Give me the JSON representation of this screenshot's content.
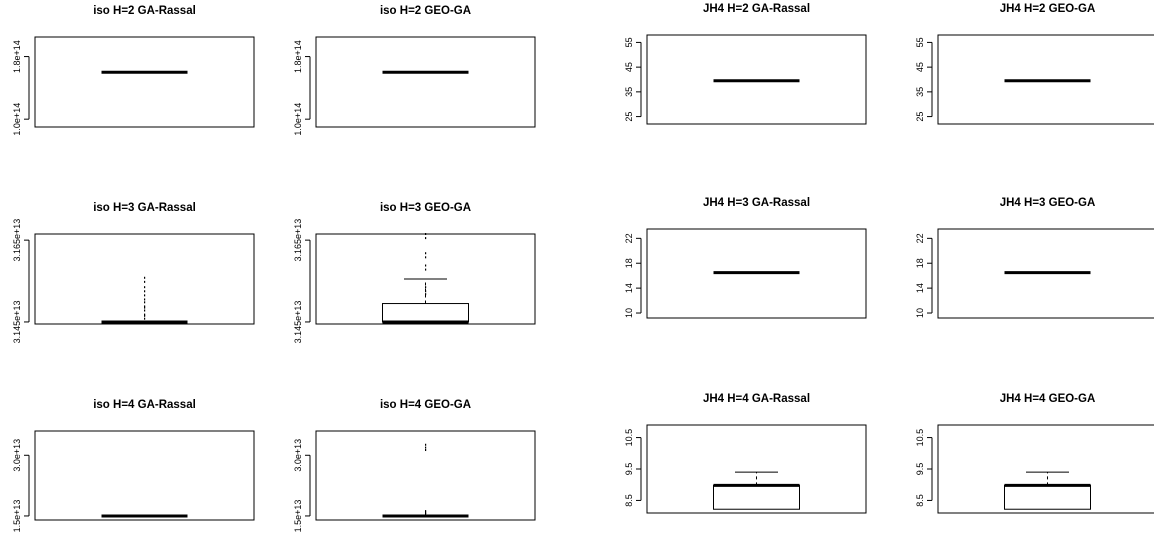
{
  "figure": {
    "title": ""
  },
  "chart_data": [
    {
      "type": "box",
      "title": "iso H=2 GA-Rassal",
      "yticks": [
        "1.0e+14",
        "1.8e+14"
      ],
      "ylim": [
        90000000000000.0,
        205000000000000.0
      ],
      "box": {
        "min": 160000000000000.0,
        "q1": 160000000000000.0,
        "median": 160000000000000.0,
        "q3": 160000000000000.0,
        "max": 160000000000000.0,
        "outliers": []
      }
    },
    {
      "type": "box",
      "title": "iso H=2 GEO-GA",
      "yticks": [
        "1.0e+14",
        "1.8e+14"
      ],
      "ylim": [
        90000000000000.0,
        205000000000000.0
      ],
      "box": {
        "min": 160000000000000.0,
        "q1": 160000000000000.0,
        "median": 160000000000000.0,
        "q3": 160000000000000.0,
        "max": 160000000000000.0,
        "outliers": []
      }
    },
    {
      "type": "box",
      "title": "JH4 H=2 GA-Rassal",
      "yticks": [
        "25",
        "35",
        "45",
        "55"
      ],
      "ylim": [
        22,
        58
      ],
      "box": {
        "min": 39.5,
        "q1": 39.5,
        "median": 39.5,
        "q3": 39.5,
        "max": 39.5,
        "outliers": []
      }
    },
    {
      "type": "box",
      "title": "JH4 H=2 GEO-GA",
      "yticks": [
        "25",
        "35",
        "45",
        "55"
      ],
      "ylim": [
        22,
        58
      ],
      "box": {
        "min": 39.5,
        "q1": 39.5,
        "median": 39.5,
        "q3": 39.5,
        "max": 39.5,
        "outliers": []
      }
    },
    {
      "type": "box",
      "title": "iso H=3 GA-Rassal",
      "yticks": [
        "3.145e+13",
        "3.165e+13"
      ],
      "ylim": [
        31445000000000.0,
        31665000000000.0
      ],
      "box": {
        "min": 31450000000000.0,
        "q1": 31450000000000.0,
        "median": 31450000000000.0,
        "q3": 31450000000000.0,
        "max": 31450000000000.0,
        "outliers": [
          31458000000000.0,
          31465000000000.0,
          31468000000000.0,
          31478000000000.0,
          31485000000000.0,
          31488000000000.0,
          31498000000000.0,
          31505000000000.0,
          31515000000000.0,
          31525000000000.0,
          31535000000000.0,
          31548000000000.0,
          31558000000000.0
        ]
      }
    },
    {
      "type": "box",
      "title": "iso H=3 GEO-GA",
      "yticks": [
        "3.145e+13",
        "3.165e+13"
      ],
      "ylim": [
        31445000000000.0,
        31665000000000.0
      ],
      "box": {
        "min": 31450000000000.0,
        "q1": 31450000000000.0,
        "median": 31450000000000.0,
        "q3": 31495000000000.0,
        "max": 31555000000000.0,
        "outliers": [
          31518000000000.0,
          31525000000000.0,
          31535000000000.0,
          31578000000000.0,
          31588000000000.0,
          31608000000000.0,
          31618000000000.0,
          31655000000000.0,
          31665000000000.0
        ]
      }
    },
    {
      "type": "box",
      "title": "JH4 H=3 GA-Rassal",
      "yticks": [
        "10",
        "14",
        "18",
        "22"
      ],
      "ylim": [
        9.2,
        23.5
      ],
      "box": {
        "min": 16.5,
        "q1": 16.5,
        "median": 16.5,
        "q3": 16.5,
        "max": 16.5,
        "outliers": []
      }
    },
    {
      "type": "box",
      "title": "JH4 H=3 GEO-GA",
      "yticks": [
        "10",
        "14",
        "18",
        "22"
      ],
      "ylim": [
        9.2,
        23.5
      ],
      "box": {
        "min": 16.5,
        "q1": 16.5,
        "median": 16.5,
        "q3": 16.5,
        "max": 16.5,
        "outliers": []
      }
    },
    {
      "type": "box",
      "title": "iso H=4 GA-Rassal",
      "yticks": [
        "1.5e+13",
        "3.0e+13"
      ],
      "ylim": [
        14000000000000.0,
        36000000000000.0
      ],
      "box": {
        "min": 15000000000000.0,
        "q1": 15000000000000.0,
        "median": 15000000000000.0,
        "q3": 15000000000000.0,
        "max": 15000000000000.0,
        "outliers": []
      }
    },
    {
      "type": "box",
      "title": "iso H=4 GEO-GA",
      "yticks": [
        "1.5e+13",
        "3.0e+13"
      ],
      "ylim": [
        14000000000000.0,
        36000000000000.0
      ],
      "box": {
        "min": 15000000000000.0,
        "q1": 15000000000000.0,
        "median": 15000000000000.0,
        "q3": 15000000000000.0,
        "max": 15000000000000.0,
        "outliers": [
          15500000000000.0,
          15800000000000.0,
          16200000000000.0,
          31300000000000.0,
          31900000000000.0,
          32600000000000.0
        ]
      }
    },
    {
      "type": "box",
      "title": "JH4 H=4 GA-Rassal",
      "yticks": [
        "8.5",
        "9.5",
        "10.5"
      ],
      "ylim": [
        8.1,
        10.9
      ],
      "box": {
        "min": 8.22,
        "q1": 8.22,
        "median": 8.98,
        "q3": 8.98,
        "max": 9.4,
        "outliers": []
      }
    },
    {
      "type": "box",
      "title": "JH4 H=4 GEO-GA",
      "yticks": [
        "8.5",
        "9.5",
        "10.5"
      ],
      "ylim": [
        8.1,
        10.9
      ],
      "box": {
        "min": 8.22,
        "q1": 8.22,
        "median": 8.98,
        "q3": 8.98,
        "max": 9.4,
        "outliers": []
      }
    }
  ]
}
